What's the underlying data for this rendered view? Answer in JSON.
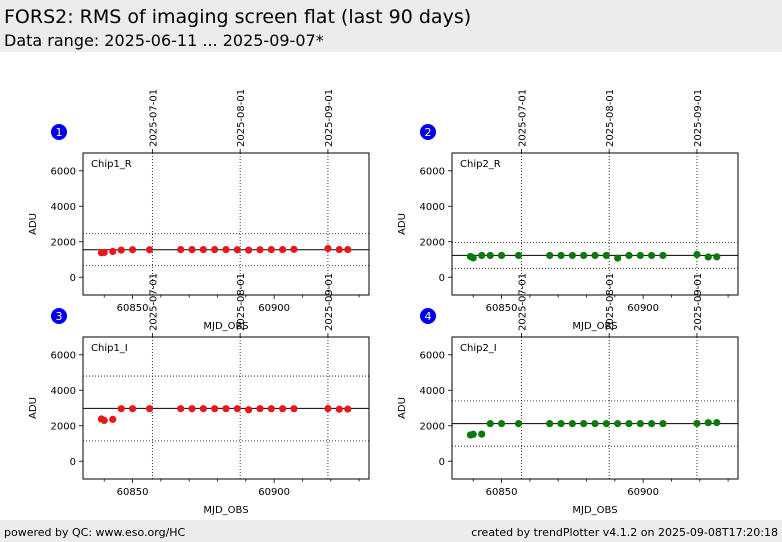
{
  "header": {
    "title": "FORS2: RMS of imaging screen flat (last 90 days)",
    "subtitle": "Data range: 2025-06-11 ... 2025-09-07*"
  },
  "footer": {
    "left": "powered by QC: www.eso.org/HC",
    "right": "created by trendPlotter v4.1.2 on 2025-09-08T17:20:18"
  },
  "chart_data": [
    {
      "type": "scatter",
      "panel_number": "1",
      "label": "Chip1_R",
      "color": "#e8171b",
      "xlabel": "MJD_OBS",
      "ylabel": "ADU",
      "xlim": [
        60832.5,
        60933.5
      ],
      "ylim": [
        -1000,
        7000
      ],
      "x_ticks": [
        60850,
        60900
      ],
      "y_ticks": [
        0,
        2000,
        4000,
        6000
      ],
      "date_ticks": [
        {
          "label": "2025-07-01",
          "mjd": 60857
        },
        {
          "label": "2025-08-01",
          "mjd": 60888
        },
        {
          "label": "2025-09-01",
          "mjd": 60919
        }
      ],
      "median": 1550,
      "limits": [
        650,
        2450
      ],
      "x": [
        60839,
        60840,
        60843,
        60846,
        60850,
        60856,
        60867,
        60871,
        60875,
        60879,
        60883,
        60887,
        60891,
        60895,
        60899,
        60903,
        60907,
        60919,
        60923,
        60926
      ],
      "y": [
        1380,
        1400,
        1450,
        1530,
        1550,
        1550,
        1560,
        1560,
        1560,
        1560,
        1560,
        1550,
        1530,
        1550,
        1560,
        1560,
        1570,
        1620,
        1560,
        1560
      ]
    },
    {
      "type": "scatter",
      "panel_number": "2",
      "label": "Chip2_R",
      "color": "#0a7a0a",
      "xlabel": "MJD_OBS",
      "ylabel": "ADU",
      "xlim": [
        60832.5,
        60933.5
      ],
      "ylim": [
        -1000,
        7000
      ],
      "x_ticks": [
        60850,
        60900
      ],
      "y_ticks": [
        0,
        2000,
        4000,
        6000
      ],
      "date_ticks": [
        {
          "label": "2025-07-01",
          "mjd": 60857
        },
        {
          "label": "2025-08-01",
          "mjd": 60888
        },
        {
          "label": "2025-09-01",
          "mjd": 60919
        }
      ],
      "median": 1230,
      "limits": [
        500,
        1950
      ],
      "x": [
        60839,
        60840,
        60843,
        60846,
        60850,
        60856,
        60867,
        60871,
        60875,
        60879,
        60883,
        60887,
        60891,
        60895,
        60899,
        60903,
        60907,
        60919,
        60923,
        60926
      ],
      "y": [
        1170,
        1090,
        1230,
        1230,
        1230,
        1230,
        1230,
        1230,
        1230,
        1230,
        1230,
        1230,
        1080,
        1230,
        1230,
        1230,
        1230,
        1280,
        1140,
        1150
      ]
    },
    {
      "type": "scatter",
      "panel_number": "3",
      "label": "Chip1_I",
      "color": "#e8171b",
      "xlabel": "MJD_OBS",
      "ylabel": "ADU",
      "xlim": [
        60832.5,
        60933.5
      ],
      "ylim": [
        -1000,
        7000
      ],
      "x_ticks": [
        60850,
        60900
      ],
      "y_ticks": [
        0,
        2000,
        4000,
        6000
      ],
      "date_ticks": [
        {
          "label": "2025-07-01",
          "mjd": 60857
        },
        {
          "label": "2025-08-01",
          "mjd": 60888
        },
        {
          "label": "2025-09-01",
          "mjd": 60919
        }
      ],
      "median": 2980,
      "limits": [
        1150,
        4800
      ],
      "x": [
        60839,
        60840,
        60843,
        60846,
        60850,
        60856,
        60867,
        60871,
        60875,
        60879,
        60883,
        60887,
        60891,
        60895,
        60899,
        60903,
        60907,
        60919,
        60923,
        60926
      ],
      "y": [
        2380,
        2300,
        2360,
        2960,
        2960,
        2960,
        2960,
        2960,
        2960,
        2960,
        2960,
        2960,
        2900,
        2960,
        2960,
        2960,
        2960,
        2970,
        2930,
        2940
      ]
    },
    {
      "type": "scatter",
      "panel_number": "4",
      "label": "Chip2_I",
      "color": "#0a7a0a",
      "xlabel": "MJD_OBS",
      "ylabel": "ADU",
      "xlim": [
        60832.5,
        60933.5
      ],
      "ylim": [
        -1000,
        7000
      ],
      "x_ticks": [
        60850,
        60900
      ],
      "y_ticks": [
        0,
        2000,
        4000,
        6000
      ],
      "date_ticks": [
        {
          "label": "2025-07-01",
          "mjd": 60857
        },
        {
          "label": "2025-08-01",
          "mjd": 60888
        },
        {
          "label": "2025-09-01",
          "mjd": 60919
        }
      ],
      "median": 2120,
      "limits": [
        850,
        3400
      ],
      "x": [
        60839,
        60840,
        60843,
        60846,
        60850,
        60856,
        60867,
        60871,
        60875,
        60879,
        60883,
        60887,
        60891,
        60895,
        60899,
        60903,
        60907,
        60919,
        60923,
        60926
      ],
      "y": [
        1480,
        1520,
        1530,
        2120,
        2120,
        2120,
        2120,
        2120,
        2120,
        2120,
        2120,
        2120,
        2120,
        2120,
        2120,
        2120,
        2120,
        2130,
        2170,
        2180
      ]
    }
  ]
}
